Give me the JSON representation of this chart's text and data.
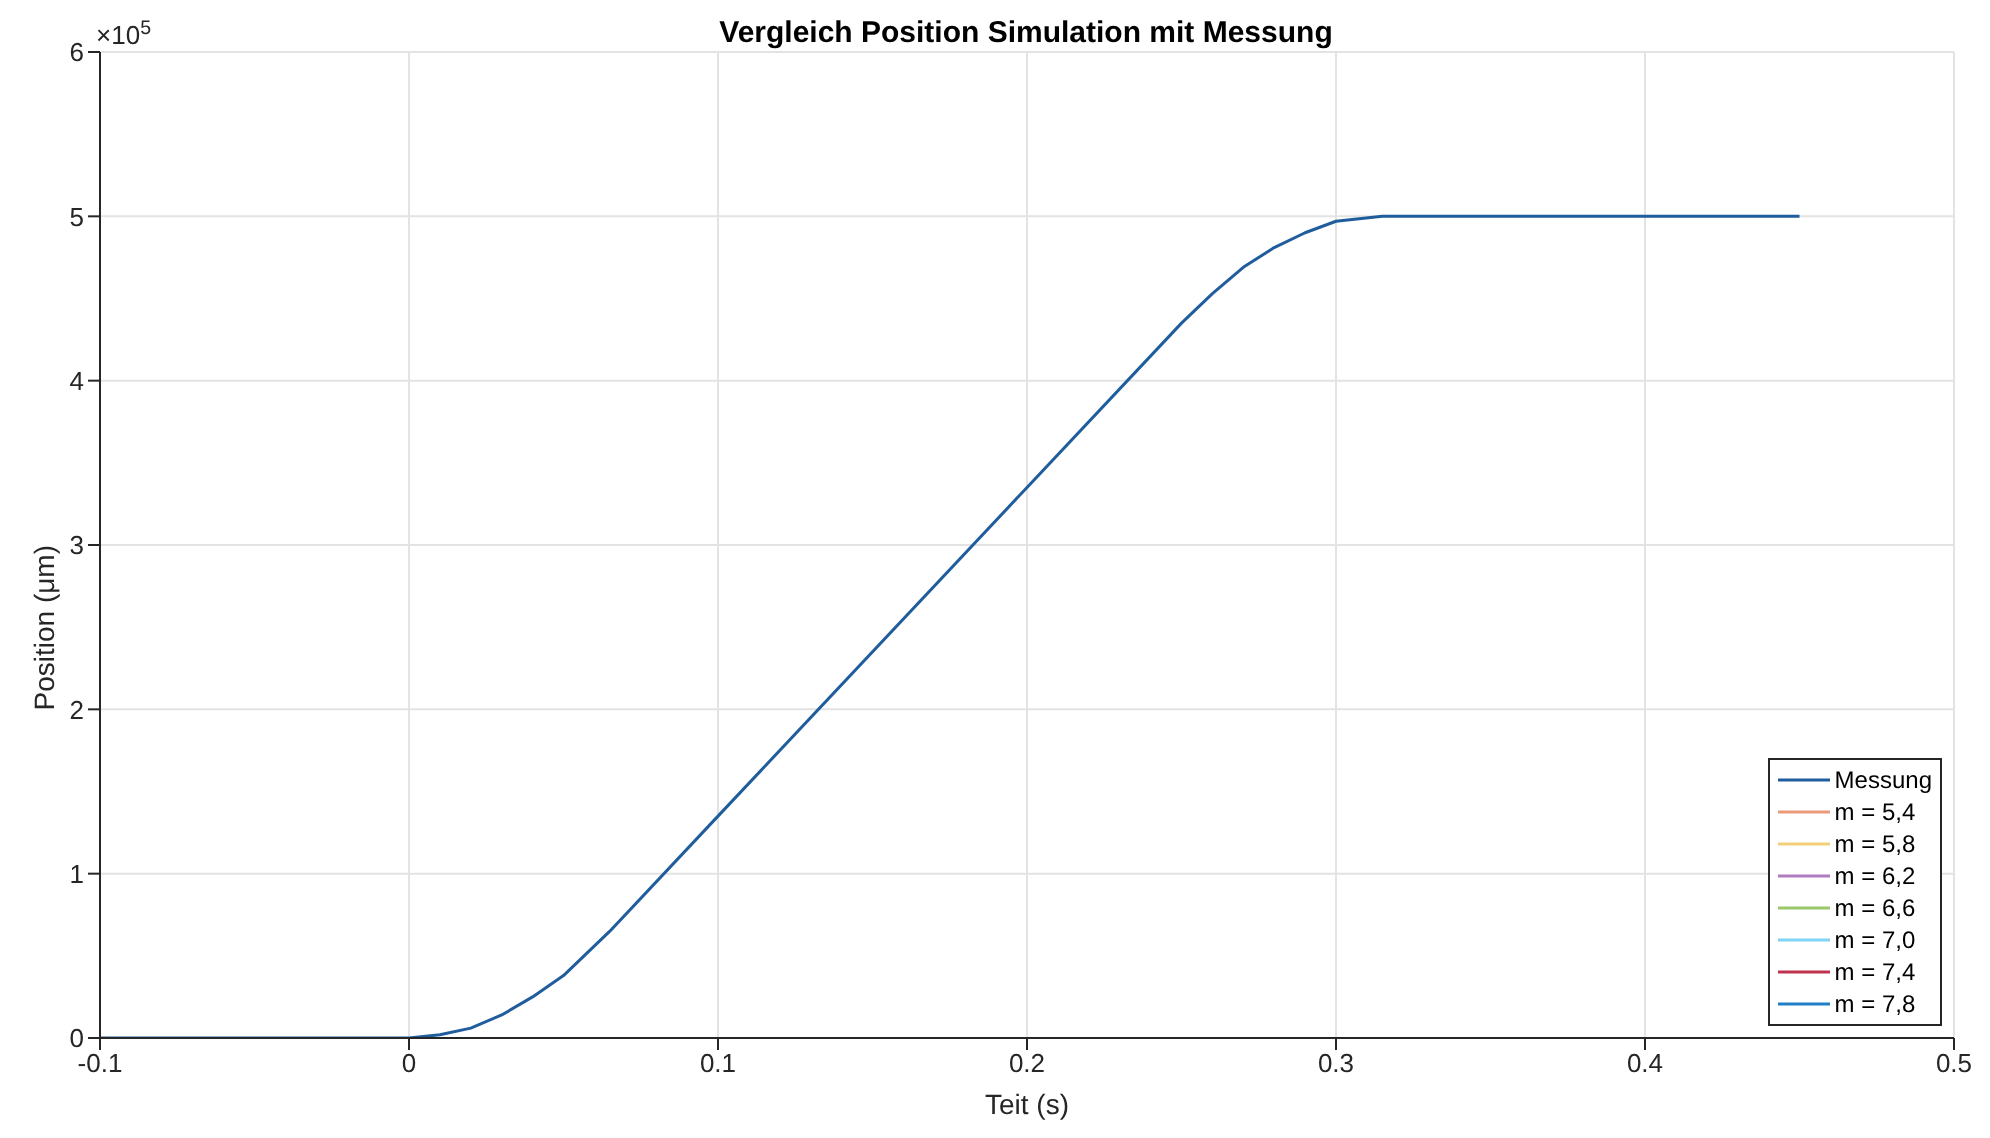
{
  "chart_data": {
    "type": "line",
    "title": "Vergleich Position Simulation mit Messung",
    "xlabel": "Teit (s)",
    "ylabel": "Position (μm)",
    "annotations": [
      "×10$^{5}$"
    ],
    "x": [
      -0.1,
      0,
      0.01,
      0.02,
      0.03,
      0.04,
      0.05,
      0.065,
      0.1,
      0.2,
      0.25,
      0.26,
      0.27,
      0.28,
      0.29,
      0.3,
      0.315,
      0.45
    ],
    "series": [
      {
        "name": "Messung",
        "color": "#1f5d9c",
        "values": [
          0,
          0,
          0.02,
          0.06,
          0.14,
          0.25,
          0.38,
          0.65,
          1.35,
          3.35,
          4.35,
          4.53,
          4.69,
          4.81,
          4.9,
          4.97,
          5,
          5
        ]
      },
      {
        "name": "m = 5,4",
        "color": "#eb9a7a",
        "values": [
          null,
          null,
          null,
          null,
          null,
          null,
          null,
          null,
          null,
          null,
          null,
          null,
          null,
          null,
          null,
          null,
          null,
          null
        ]
      },
      {
        "name": "m = 5,8",
        "color": "#f3cf7a",
        "values": [
          null,
          null,
          null,
          null,
          null,
          null,
          null,
          null,
          null,
          null,
          null,
          null,
          null,
          null,
          null,
          null,
          null,
          null
        ]
      },
      {
        "name": "m = 6,2",
        "color": "#b07cc0",
        "values": [
          null,
          null,
          null,
          null,
          null,
          null,
          null,
          null,
          null,
          null,
          null,
          null,
          null,
          null,
          null,
          null,
          null,
          null
        ]
      },
      {
        "name": "m = 6,6",
        "color": "#9bc86a",
        "values": [
          null,
          null,
          null,
          null,
          null,
          null,
          null,
          null,
          null,
          null,
          null,
          null,
          null,
          null,
          null,
          null,
          null,
          null
        ]
      },
      {
        "name": "m = 7,0",
        "color": "#80d4f5",
        "values": [
          null,
          null,
          null,
          null,
          null,
          null,
          null,
          null,
          null,
          null,
          null,
          null,
          null,
          null,
          null,
          null,
          null,
          null
        ]
      },
      {
        "name": "m = 7,4",
        "color": "#c0334f",
        "values": [
          null,
          null,
          null,
          null,
          null,
          null,
          null,
          null,
          null,
          null,
          null,
          null,
          null,
          null,
          null,
          null,
          null,
          null
        ]
      },
      {
        "name": "m = 7,8",
        "color": "#1f80c8",
        "values": [
          null,
          null,
          null,
          null,
          null,
          null,
          null,
          null,
          null,
          null,
          null,
          null,
          null,
          null,
          null,
          null,
          null,
          null
        ]
      }
    ],
    "xlim": [
      -0.1,
      0.5
    ],
    "xticks": [
      -0.1,
      0,
      0.1,
      0.2,
      0.3,
      0.4,
      0.5
    ],
    "ylim": [
      0,
      6
    ],
    "yticks": [
      0,
      1,
      2,
      3,
      4,
      5,
      6
    ],
    "grid": true,
    "legend": "bottom right",
    "marker": "none",
    "line_style": "solid"
  }
}
